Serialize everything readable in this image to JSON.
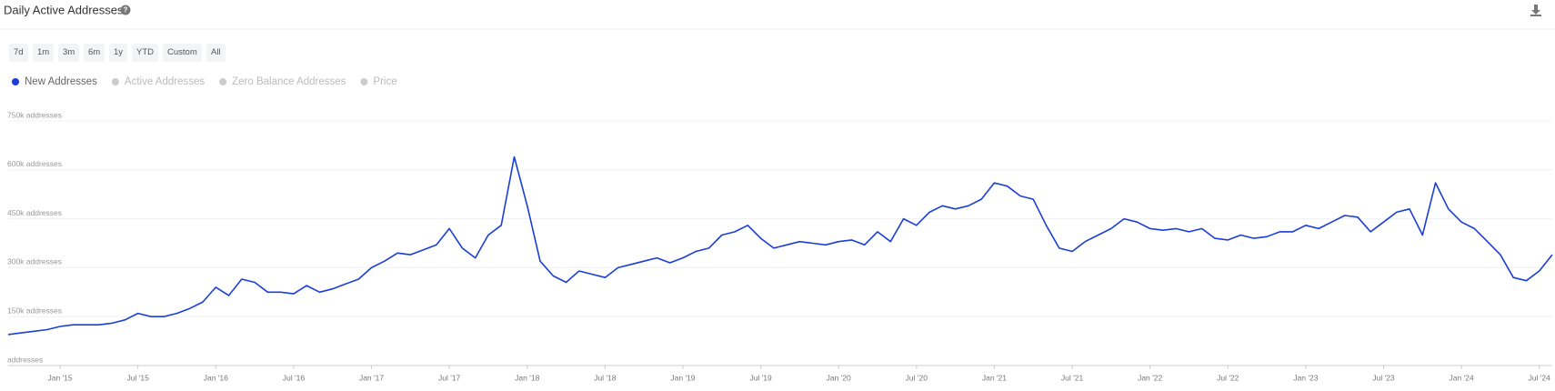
{
  "chart_data": {
    "type": "line",
    "title": "Daily Active Addresses",
    "range_buttons": [
      "7d",
      "1m",
      "3m",
      "6m",
      "1y",
      "YTD",
      "Custom",
      "All"
    ],
    "legend_inactive": [
      "Active Addresses",
      "Zero Balance Addresses",
      "Price"
    ],
    "x": [
      "2014-09",
      "2014-10",
      "2014-11",
      "2014-12",
      "2015-01",
      "2015-02",
      "2015-03",
      "2015-04",
      "2015-05",
      "2015-06",
      "2015-07",
      "2015-08",
      "2015-09",
      "2015-10",
      "2015-11",
      "2015-12",
      "2016-01",
      "2016-02",
      "2016-03",
      "2016-04",
      "2016-05",
      "2016-06",
      "2016-07",
      "2016-08",
      "2016-09",
      "2016-10",
      "2016-11",
      "2016-12",
      "2017-01",
      "2017-02",
      "2017-03",
      "2017-04",
      "2017-05",
      "2017-06",
      "2017-07",
      "2017-08",
      "2017-09",
      "2017-10",
      "2017-11",
      "2017-12",
      "2018-01",
      "2018-02",
      "2018-03",
      "2018-04",
      "2018-05",
      "2018-06",
      "2018-07",
      "2018-08",
      "2018-09",
      "2018-10",
      "2018-11",
      "2018-12",
      "2019-01",
      "2019-02",
      "2019-03",
      "2019-04",
      "2019-05",
      "2019-06",
      "2019-07",
      "2019-08",
      "2019-09",
      "2019-10",
      "2019-11",
      "2019-12",
      "2020-01",
      "2020-02",
      "2020-03",
      "2020-04",
      "2020-05",
      "2020-06",
      "2020-07",
      "2020-08",
      "2020-09",
      "2020-10",
      "2020-11",
      "2020-12",
      "2021-01",
      "2021-02",
      "2021-03",
      "2021-04",
      "2021-05",
      "2021-06",
      "2021-07",
      "2021-08",
      "2021-09",
      "2021-10",
      "2021-11",
      "2021-12",
      "2022-01",
      "2022-02",
      "2022-03",
      "2022-04",
      "2022-05",
      "2022-06",
      "2022-07",
      "2022-08",
      "2022-09",
      "2022-10",
      "2022-11",
      "2022-12",
      "2023-01",
      "2023-02",
      "2023-03",
      "2023-04",
      "2023-05",
      "2023-06",
      "2023-07",
      "2023-08",
      "2023-09",
      "2023-10",
      "2023-11",
      "2023-12",
      "2024-01",
      "2024-02",
      "2024-03",
      "2024-04",
      "2024-05",
      "2024-06",
      "2024-07",
      "2024-08"
    ],
    "series": [
      {
        "name": "New Addresses",
        "color": "#1a3fd6",
        "values": [
          95000,
          100000,
          105000,
          110000,
          120000,
          125000,
          125000,
          125000,
          130000,
          140000,
          160000,
          150000,
          150000,
          160000,
          175000,
          195000,
          240000,
          215000,
          265000,
          255000,
          225000,
          225000,
          220000,
          245000,
          225000,
          235000,
          250000,
          265000,
          300000,
          320000,
          345000,
          340000,
          355000,
          370000,
          420000,
          360000,
          330000,
          400000,
          430000,
          640000,
          490000,
          320000,
          275000,
          255000,
          290000,
          280000,
          270000,
          300000,
          310000,
          320000,
          330000,
          315000,
          330000,
          350000,
          360000,
          400000,
          410000,
          430000,
          390000,
          360000,
          370000,
          380000,
          375000,
          370000,
          380000,
          385000,
          370000,
          410000,
          380000,
          450000,
          430000,
          470000,
          490000,
          480000,
          490000,
          510000,
          560000,
          550000,
          520000,
          510000,
          430000,
          360000,
          350000,
          380000,
          400000,
          420000,
          450000,
          440000,
          420000,
          415000,
          420000,
          410000,
          420000,
          390000,
          385000,
          400000,
          390000,
          395000,
          410000,
          410000,
          430000,
          420000,
          440000,
          460000,
          455000,
          410000,
          440000,
          470000,
          480000,
          400000,
          560000,
          480000,
          440000,
          420000,
          380000,
          340000,
          270000,
          260000,
          290000,
          340000
        ]
      }
    ],
    "xlim": [
      "2014-09",
      "2024-08"
    ],
    "xticks": [
      {
        "value": "2015-01",
        "label": "Jan '15"
      },
      {
        "value": "2015-07",
        "label": "Jul '15"
      },
      {
        "value": "2016-01",
        "label": "Jan '16"
      },
      {
        "value": "2016-07",
        "label": "Jul '16"
      },
      {
        "value": "2017-01",
        "label": "Jan '17"
      },
      {
        "value": "2017-07",
        "label": "Jul '17"
      },
      {
        "value": "2018-01",
        "label": "Jan '18"
      },
      {
        "value": "2018-07",
        "label": "Jul '18"
      },
      {
        "value": "2019-01",
        "label": "Jan '19"
      },
      {
        "value": "2019-07",
        "label": "Jul '19"
      },
      {
        "value": "2020-01",
        "label": "Jan '20"
      },
      {
        "value": "2020-07",
        "label": "Jul '20"
      },
      {
        "value": "2021-01",
        "label": "Jan '21"
      },
      {
        "value": "2021-07",
        "label": "Jul '21"
      },
      {
        "value": "2022-01",
        "label": "Jan '22"
      },
      {
        "value": "2022-07",
        "label": "Jul '22"
      },
      {
        "value": "2023-01",
        "label": "Jan '23"
      },
      {
        "value": "2023-07",
        "label": "Jul '23"
      },
      {
        "value": "2024-01",
        "label": "Jan '24"
      },
      {
        "value": "2024-07",
        "label": "Jul '24"
      }
    ],
    "ylim": [
      0,
      750000
    ],
    "yticks": [
      {
        "value": 0,
        "label": "addresses"
      },
      {
        "value": 150000,
        "label": "150k addresses"
      },
      {
        "value": 300000,
        "label": "300k addresses"
      },
      {
        "value": 450000,
        "label": "450k addresses"
      },
      {
        "value": 600000,
        "label": "600k addresses"
      },
      {
        "value": 750000,
        "label": "750k addresses"
      }
    ],
    "grid": true
  }
}
